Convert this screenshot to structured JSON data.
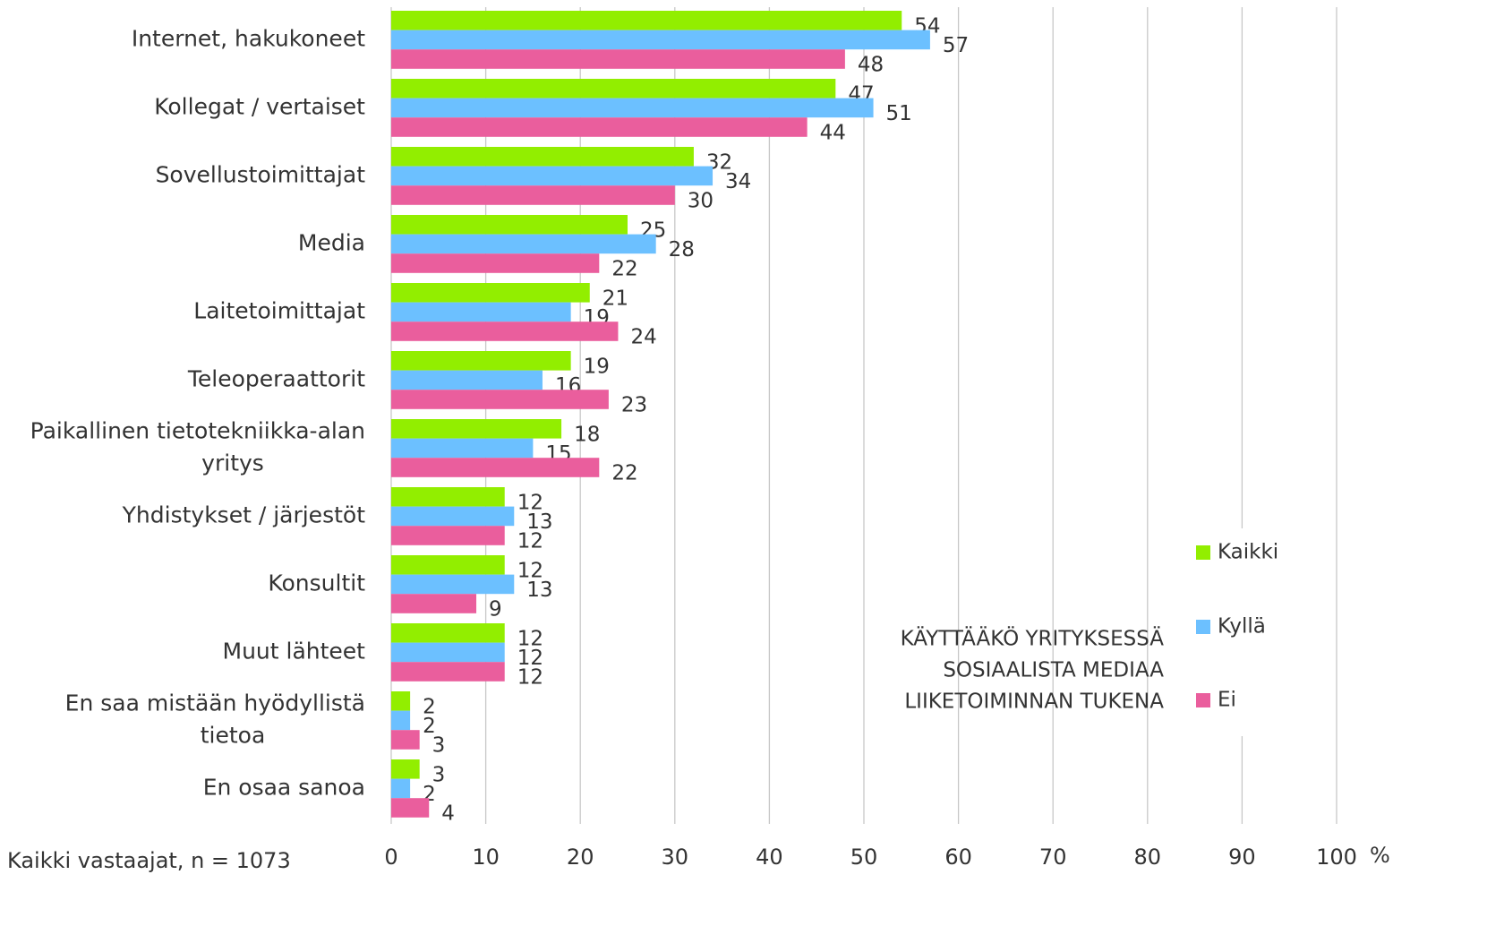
{
  "chart_data": {
    "type": "bar",
    "orientation": "horizontal",
    "categories": [
      "Internet, hakukoneet",
      "Kollegat / vertaiset",
      "Sovellustoimittajat",
      "Media",
      "Laitetoimittajat",
      "Teleoperaattorit",
      "Paikallinen tietotekniikka-alan yritys",
      "Yhdistykset / järjestöt",
      "Konsultit",
      "Muut lähteet",
      "En saa mistään hyödyllistä tietoa",
      "En osaa sanoa"
    ],
    "series": [
      {
        "name": "Kaikki",
        "color": "#92ee00",
        "values": [
          54,
          47,
          32,
          25,
          21,
          19,
          18,
          12,
          12,
          12,
          2,
          3
        ]
      },
      {
        "name": "Kyllä",
        "color": "#6cc0ff",
        "values": [
          57,
          51,
          34,
          28,
          19,
          16,
          15,
          13,
          13,
          12,
          2,
          2
        ]
      },
      {
        "name": "Ei",
        "color": "#ea5e9d",
        "values": [
          48,
          44,
          30,
          22,
          24,
          23,
          22,
          12,
          9,
          12,
          3,
          4
        ]
      }
    ],
    "xlim": [
      0,
      100
    ],
    "xticks": [
      0,
      10,
      20,
      30,
      40,
      50,
      60,
      70,
      80,
      90,
      100
    ],
    "x_unit": "%",
    "grid": true,
    "legend_title": [
      "KÄYTTÄÄKÖ YRITYKSESSÄ",
      "SOSIAALISTA MEDIAA",
      "LIIKETOIMINNAN TUKENA"
    ],
    "note": "Kaikki vastaajat, n = 1073"
  }
}
